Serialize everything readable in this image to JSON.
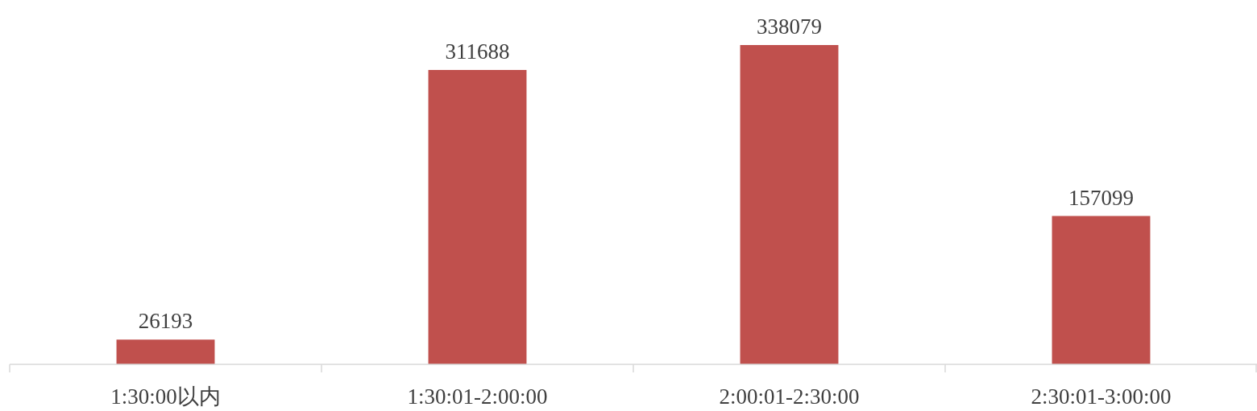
{
  "chart_data": {
    "type": "bar",
    "categories": [
      "1:30:00以内",
      "1:30:01-2:00:00",
      "2:00:01-2:30:00",
      "2:30:01-3:00:00"
    ],
    "values": [
      26193,
      311688,
      338079,
      157099
    ],
    "color": "#c0504d",
    "data_labels": true
  }
}
